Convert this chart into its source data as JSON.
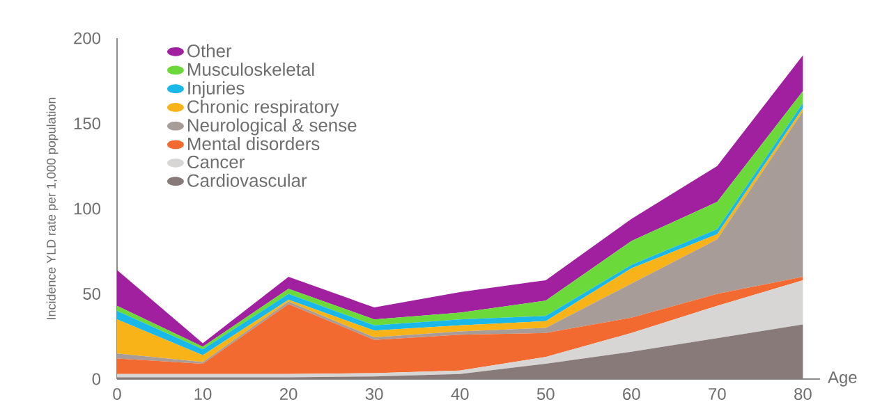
{
  "chart_data": {
    "type": "area",
    "stacked": true,
    "xlabel": "Age",
    "ylabel": "Incidence YLD rate per 1,000 population",
    "x": [
      0,
      10,
      20,
      30,
      40,
      50,
      60,
      70,
      80
    ],
    "xlim": [
      0,
      82
    ],
    "xticks": [
      0,
      10,
      20,
      30,
      40,
      50,
      60,
      70,
      80
    ],
    "ylim": [
      0,
      200
    ],
    "yticks": [
      0,
      50,
      100,
      150,
      200
    ],
    "legend": "top left",
    "grid": false,
    "series": [
      {
        "name": "Cardiovascular",
        "color": "#877a78",
        "values": [
          1,
          1,
          1,
          1.5,
          3,
          9,
          16,
          24,
          32
        ]
      },
      {
        "name": "Cancer",
        "color": "#d8d6d4",
        "values": [
          2,
          2,
          2,
          2,
          2,
          4,
          11,
          19,
          26
        ]
      },
      {
        "name": "Mental disorders",
        "color": "#f26a30",
        "values": [
          9,
          6,
          41,
          19.5,
          21,
          14,
          9,
          7,
          2
        ]
      },
      {
        "name": "Neurological & sense",
        "color": "#a89c98",
        "values": [
          3,
          1,
          1.5,
          1.5,
          2,
          3,
          20,
          32,
          97
        ]
      },
      {
        "name": "Chronic respiratory",
        "color": "#f7b318",
        "values": [
          20,
          4,
          1,
          4,
          3.5,
          4,
          9,
          3,
          2
        ]
      },
      {
        "name": "Injuries",
        "color": "#1ab8e8",
        "values": [
          5,
          3.5,
          3.5,
          3,
          3.5,
          3,
          2,
          3,
          3
        ]
      },
      {
        "name": "Musculoskeletal",
        "color": "#6cd93a",
        "values": [
          3,
          1.5,
          3,
          3.5,
          4,
          9,
          14,
          16,
          7
        ]
      },
      {
        "name": "Other",
        "color": "#a020a0",
        "values": [
          21,
          2,
          7,
          7,
          12,
          12,
          13,
          21,
          21
        ]
      }
    ]
  }
}
